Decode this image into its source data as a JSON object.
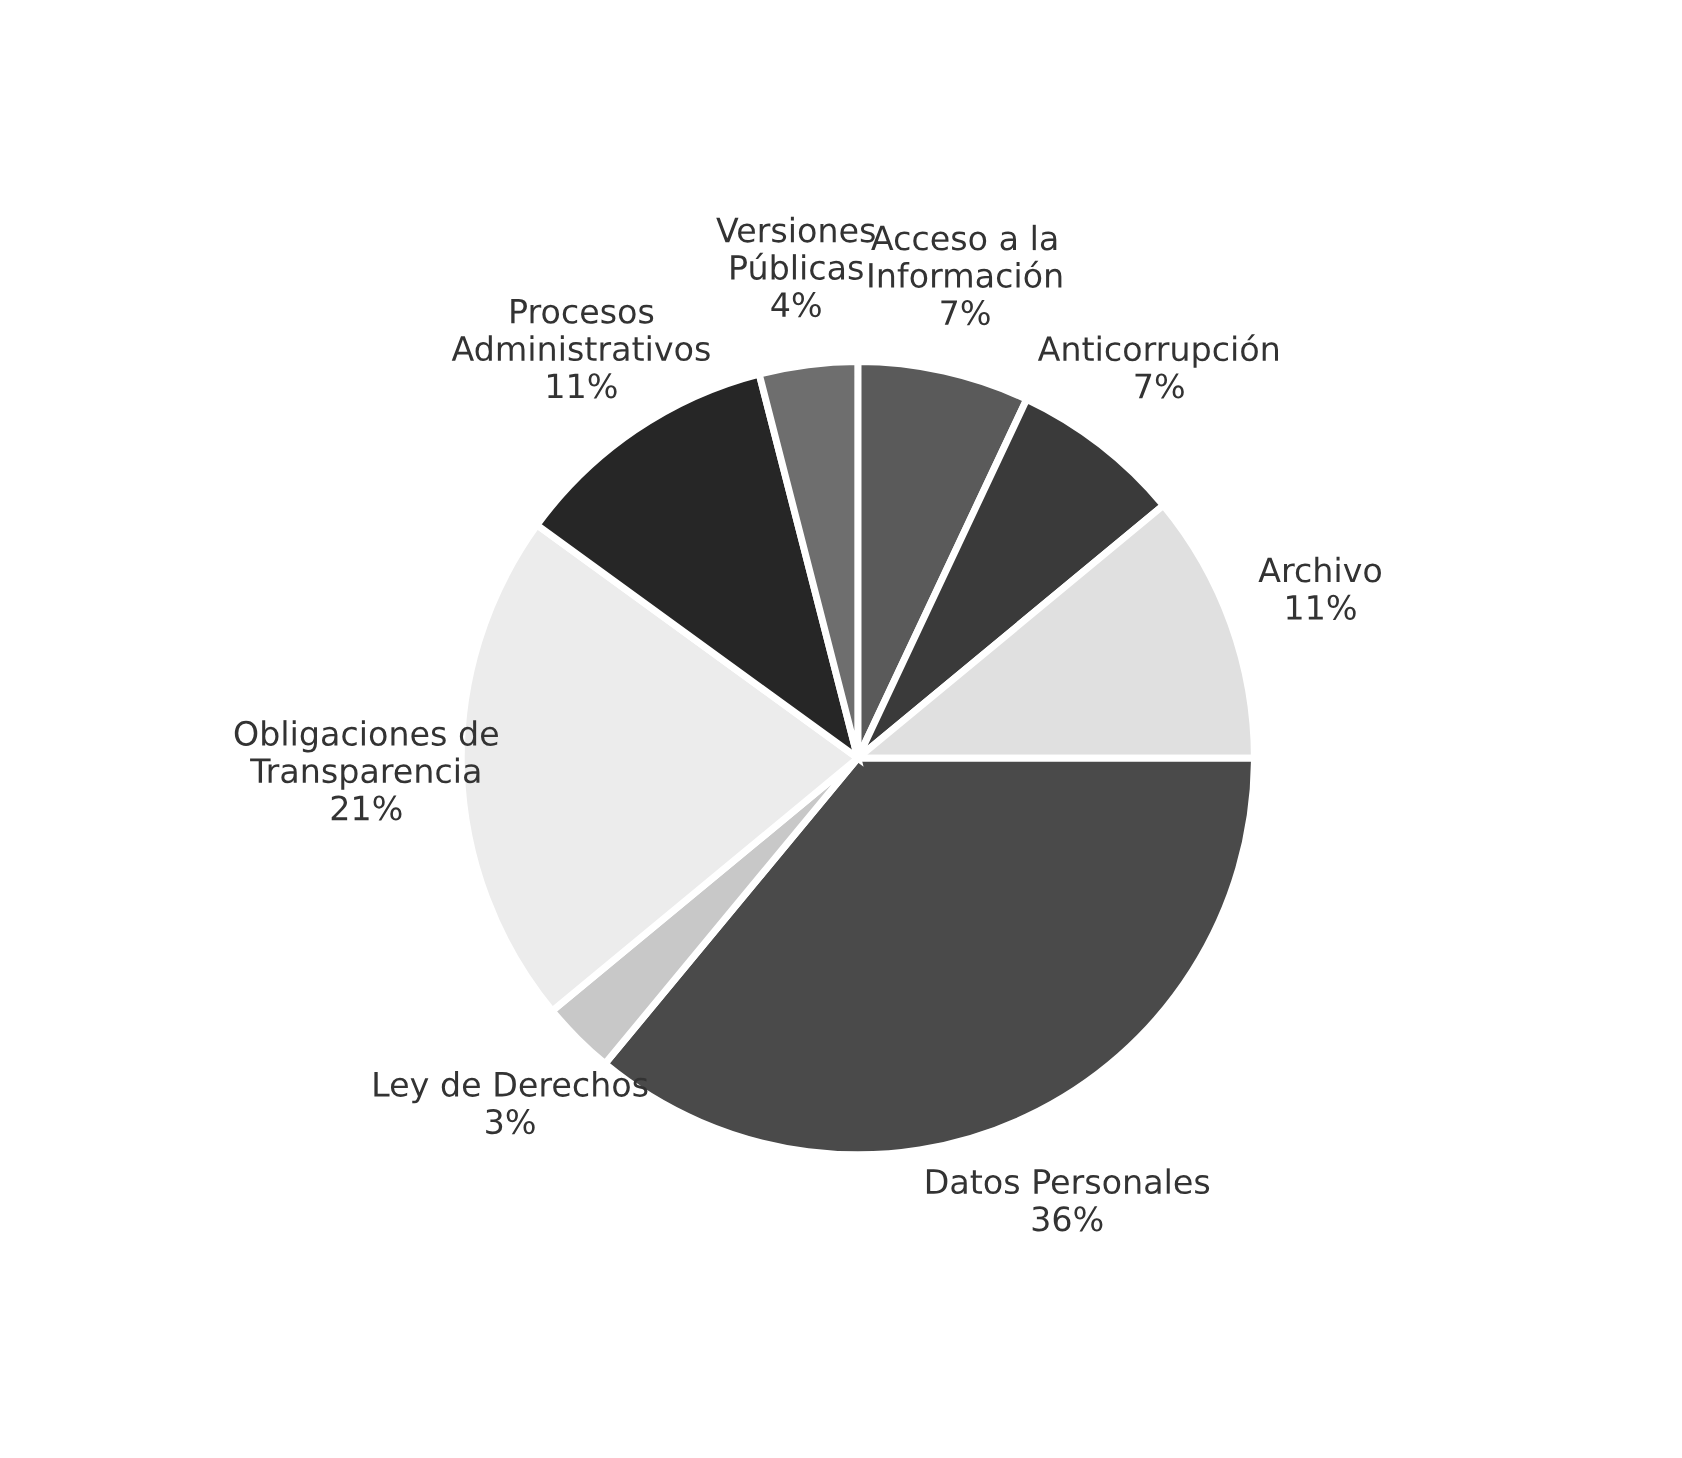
{
  "chart_data": {
    "type": "pie",
    "categories": [
      "Acceso a la\nInformación",
      "Anticorrupción",
      "Archivo",
      "Datos Personales",
      "Ley de Derechos",
      "Obligaciones de\nTransparencia",
      "Procesos\nAdministrativos",
      "Versiones\nPúblicas"
    ],
    "values": [
      7,
      7,
      11,
      36,
      3,
      21,
      11,
      4
    ],
    "colors": [
      "#5a5a5a",
      "#3a3a3a",
      "#e0e0e0",
      "#4a4a4a",
      "#c8c8c8",
      "#ececec",
      "#262626",
      "#6e6e6e"
    ],
    "value_labels": [
      "7%",
      "7%",
      "11%",
      "36%",
      "3%",
      "21%",
      "11%",
      "4%"
    ]
  }
}
